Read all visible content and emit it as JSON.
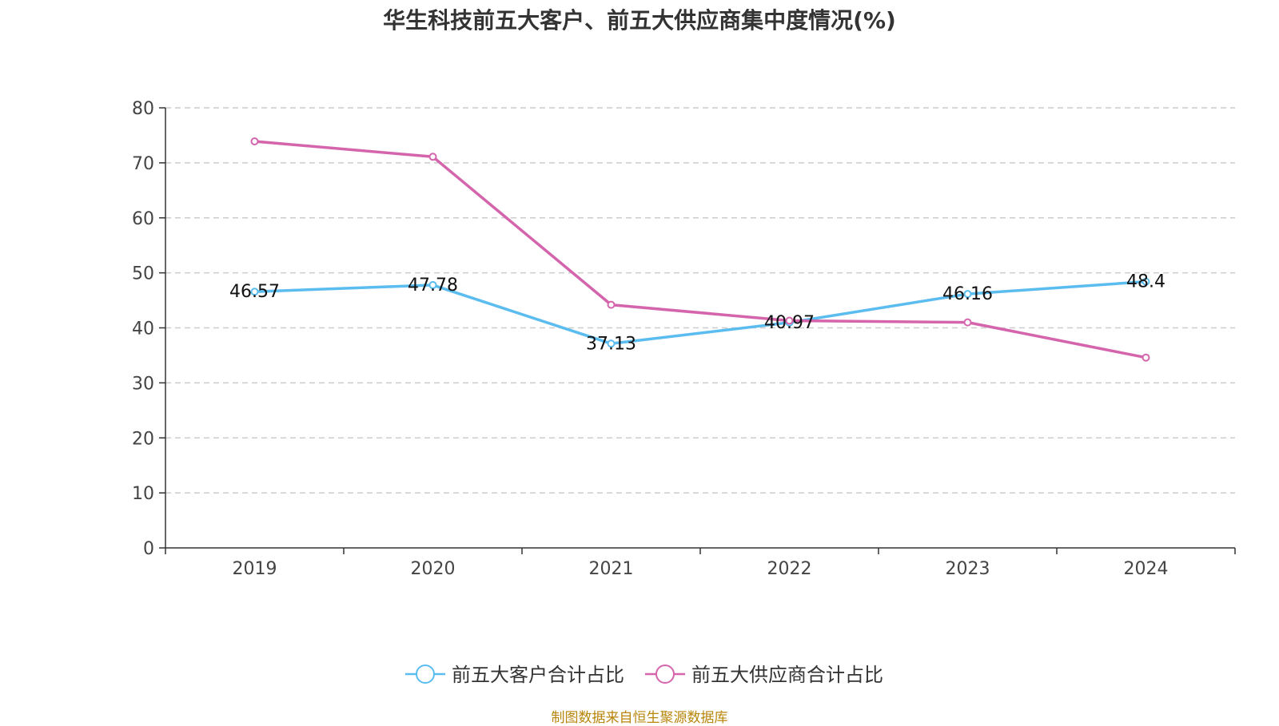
{
  "chart_data": {
    "type": "line",
    "title": "华生科技前五大客户、前五大供应商集中度情况(%)",
    "categories": [
      "2019",
      "2020",
      "2021",
      "2022",
      "2023",
      "2024"
    ],
    "ylim": [
      0,
      80
    ],
    "yticks": [
      0,
      10,
      20,
      30,
      40,
      50,
      60,
      70,
      80
    ],
    "grid": true,
    "legend_position": "bottom-center",
    "series": [
      {
        "name": "前五大客户合计占比",
        "color": "#5bbcf0",
        "values": [
          46.57,
          47.78,
          37.13,
          40.97,
          46.16,
          48.4
        ],
        "labels": [
          "46.57",
          "47.78",
          "37.13",
          "40.97",
          "46.16",
          "48.4"
        ]
      },
      {
        "name": "前五大供应商合计占比",
        "color": "#d465ac",
        "values": [
          73.9,
          71.1,
          44.2,
          41.3,
          41.0,
          34.6
        ]
      }
    ]
  },
  "source": "制图数据来自恒生聚源数据库"
}
